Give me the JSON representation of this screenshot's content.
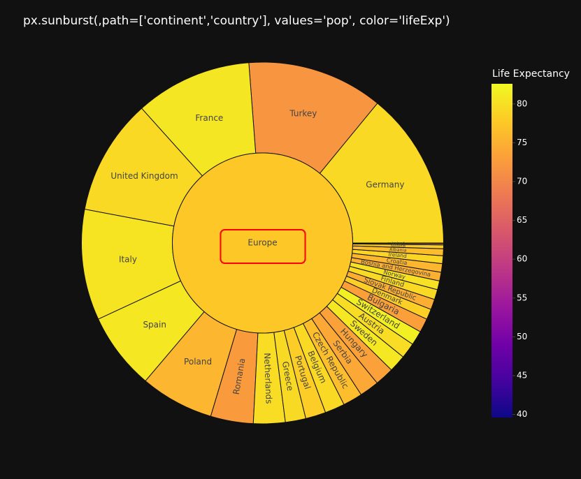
{
  "chart_data": {
    "type": "sunburst",
    "title": "px.sunburst(,path=['continent','country'], values='pop', color='lifeExp')",
    "root": {
      "name": "Europe",
      "lifeExp": 77.6,
      "highlighted": true
    },
    "countries": [
      {
        "name": "Germany",
        "pop": 82.4,
        "lifeExp": 79.4
      },
      {
        "name": "Turkey",
        "pop": 71.2,
        "lifeExp": 71.8
      },
      {
        "name": "France",
        "pop": 61.1,
        "lifeExp": 80.7
      },
      {
        "name": "United Kingdom",
        "pop": 60.8,
        "lifeExp": 79.4
      },
      {
        "name": "Italy",
        "pop": 58.1,
        "lifeExp": 80.5
      },
      {
        "name": "Spain",
        "pop": 40.4,
        "lifeExp": 80.9
      },
      {
        "name": "Poland",
        "pop": 38.5,
        "lifeExp": 75.6
      },
      {
        "name": "Romania",
        "pop": 22.3,
        "lifeExp": 72.5
      },
      {
        "name": "Netherlands",
        "pop": 16.6,
        "lifeExp": 79.8
      },
      {
        "name": "Greece",
        "pop": 10.7,
        "lifeExp": 79.5
      },
      {
        "name": "Portugal",
        "pop": 10.6,
        "lifeExp": 78.1
      },
      {
        "name": "Belgium",
        "pop": 10.4,
        "lifeExp": 79.4
      },
      {
        "name": "Czech Republic",
        "pop": 10.2,
        "lifeExp": 76.5
      },
      {
        "name": "Serbia",
        "pop": 10.2,
        "lifeExp": 74.0
      },
      {
        "name": "Hungary",
        "pop": 9.96,
        "lifeExp": 73.3
      },
      {
        "name": "Sweden",
        "pop": 9.03,
        "lifeExp": 80.9
      },
      {
        "name": "Austria",
        "pop": 8.2,
        "lifeExp": 79.8
      },
      {
        "name": "Switzerland",
        "pop": 7.55,
        "lifeExp": 81.7
      },
      {
        "name": "Bulgaria",
        "pop": 7.32,
        "lifeExp": 73.0
      },
      {
        "name": "Denmark",
        "pop": 5.47,
        "lifeExp": 78.3
      },
      {
        "name": "Slovak Republic",
        "pop": 5.45,
        "lifeExp": 74.7
      },
      {
        "name": "Finland",
        "pop": 5.24,
        "lifeExp": 79.3
      },
      {
        "name": "Norway",
        "pop": 4.63,
        "lifeExp": 80.2
      },
      {
        "name": "Bosnia and Herzegovina",
        "pop": 4.55,
        "lifeExp": 74.9
      },
      {
        "name": "Croatia",
        "pop": 4.49,
        "lifeExp": 75.7
      },
      {
        "name": "Ireland",
        "pop": 4.11,
        "lifeExp": 78.9
      },
      {
        "name": "Albania",
        "pop": 3.6,
        "lifeExp": 76.4
      },
      {
        "name": "Slovenia",
        "pop": 2.01,
        "lifeExp": 77.9
      },
      {
        "name": "Montenegro",
        "pop": 0.68,
        "lifeExp": 74.5
      },
      {
        "name": "Iceland",
        "pop": 0.3,
        "lifeExp": 81.8
      }
    ],
    "colorbar": {
      "title": "Life Expectancy",
      "min": 39.6,
      "max": 82.6,
      "ticks": [
        40,
        45,
        50,
        55,
        60,
        65,
        70,
        75,
        80
      ]
    }
  }
}
